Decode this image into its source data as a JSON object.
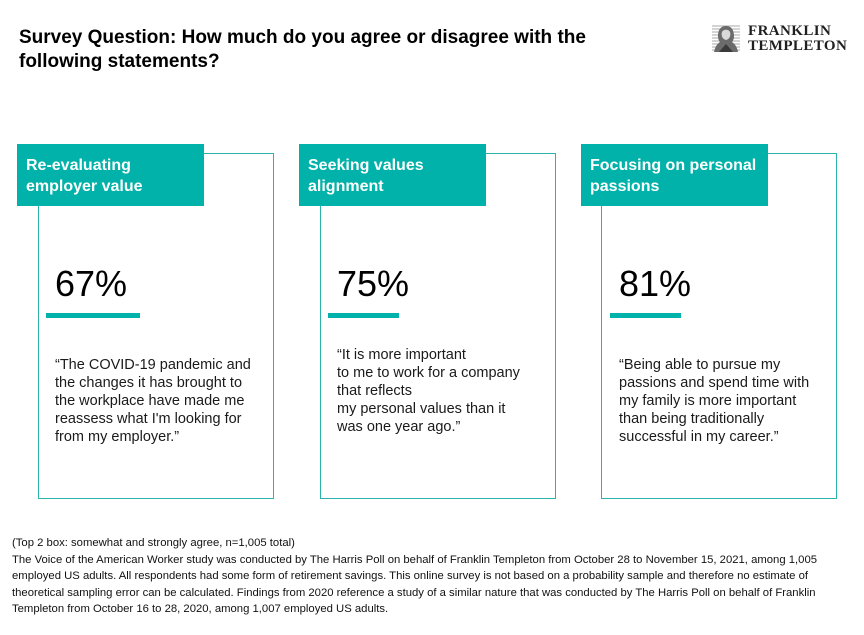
{
  "title": "Survey Question: How much do you agree or disagree with the following statements?",
  "logo": {
    "line1": "FRANKLIN",
    "line2": "TEMPLETON",
    "emblem_icon": "benjamin-franklin-portrait-icon"
  },
  "accent_color": "#00b2a9",
  "cards": [
    {
      "header": "Re-evaluating employer value",
      "percent": "67%",
      "percent_value": 67,
      "quote": "“The COVID-19 pandemic and\nthe changes it has brought to\nthe workplace have made me\nreassess what I'm looking for\nfrom my employer.”"
    },
    {
      "header": "Seeking values alignment",
      "percent": "75%",
      "percent_value": 75,
      "quote": "“It is more important\nto me to work for a company\nthat reflects\nmy personal values than it\nwas one year ago.”"
    },
    {
      "header": "Focusing on personal passions",
      "percent": "81%",
      "percent_value": 81,
      "quote": "“Being able to pursue my\npassions and spend time with\nmy family is more important\nthan being traditionally\nsuccessful in my career.”"
    }
  ],
  "footnote": {
    "line1": "(Top 2 box: somewhat and strongly agree, n=1,005 total)",
    "body": "The Voice of the American Worker study was conducted by The Harris Poll on behalf of Franklin Templeton from October 28 to November 15, 2021, among 1,005 employed US adults. All respondents had some form of retirement savings. This online survey is not based on a probability sample and therefore no estimate of theoretical sampling error can be calculated. Findings from 2020 reference a study of a similar nature that was conducted by The Harris Poll on behalf of Franklin Templeton from October 16 to 28, 2020, among 1,007 employed US adults."
  }
}
